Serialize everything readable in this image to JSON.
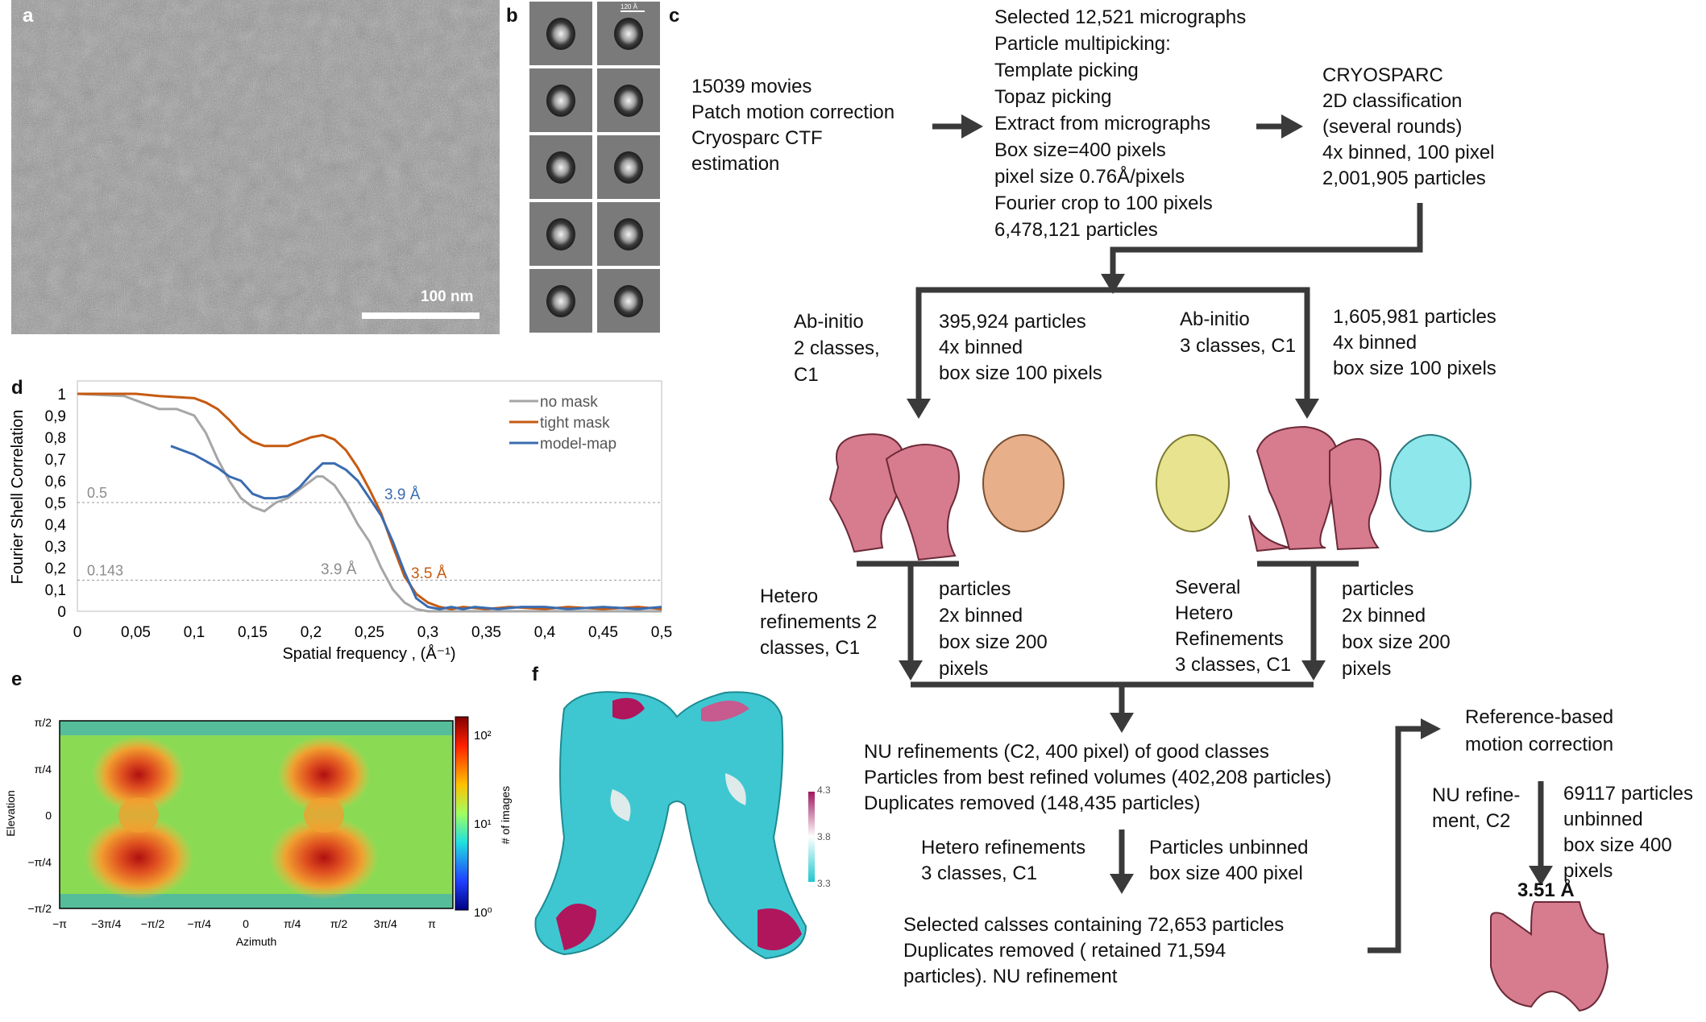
{
  "panels": {
    "a": {
      "label": "a",
      "scalebar": "100 nm"
    },
    "b": {
      "label": "b",
      "scalebar": "120 Å"
    },
    "c": {
      "label": "c"
    },
    "d": {
      "label": "d"
    },
    "e": {
      "label": "e"
    },
    "f": {
      "label": "f"
    }
  },
  "flow": {
    "movies": [
      "15039 movies",
      "Patch motion correction",
      "Cryosparc CTF",
      "estimation"
    ],
    "picking": [
      "Selected 12,521 micrographs",
      "Particle multipicking:",
      "Template picking",
      "Topaz picking",
      "Extract from micrographs",
      "Box size=400 pixels",
      "pixel size 0.76Å/pixels",
      "Fourier crop to 100 pixels",
      "6,478,121 particles"
    ],
    "cryosparc": [
      "CRYOSPARC",
      "2D classification",
      "(several rounds)",
      "4x binned, 100 pixel",
      "2,001,905 particles"
    ],
    "abinitio_left": [
      "Ab-initio",
      "2 classes,",
      "C1"
    ],
    "particles_left": [
      "395,924 particles",
      "4x binned",
      "box size 100 pixels"
    ],
    "abinitio_right": [
      "Ab-initio",
      "3 classes, C1"
    ],
    "particles_right": [
      "1,605,981 particles",
      "4x binned",
      "box size 100 pixels"
    ],
    "hetero_left": [
      "Hetero",
      "refinements 2",
      "classes, C1"
    ],
    "binned_left": [
      "particles",
      "2x binned",
      "box size 200",
      "pixels"
    ],
    "hetero_right": [
      "Several",
      "Hetero",
      "Refinements",
      "3 classes, C1"
    ],
    "binned_right": [
      "particles",
      "2x binned",
      "box size 200",
      "pixels"
    ],
    "nu_refine": [
      "NU refinements (C2, 400 pixel) of good classes",
      "Particles from best refined volumes (402,208 particles)",
      "Duplicates removed (148,435 particles)"
    ],
    "hetero3": [
      "Hetero refinements",
      "3 classes, C1"
    ],
    "unbinned400": [
      "Particles unbinned",
      "box size 400 pixel"
    ],
    "selected": [
      "Selected calsses containing 72,653 particles",
      "Duplicates removed ( retained 71,594",
      "particles). NU refinement"
    ],
    "refmotion": [
      "Reference-based",
      "motion correction"
    ],
    "nu_c2": [
      "NU refine-",
      "ment, C2"
    ],
    "p69117": [
      "69117 particles",
      "unbinned",
      "box size 400",
      "pixels"
    ],
    "resolution_final": "3.51 Å"
  },
  "chart_data": [
    {
      "type": "line",
      "panel": "d",
      "ylabel": "Fourier Shell Correlation",
      "xlabel": "Spatial frequency , (Å⁻¹)",
      "xlim": [
        0,
        0.5
      ],
      "ylim": [
        0,
        1
      ],
      "x_ticks": [
        "0",
        "0,05",
        "0,1",
        "0,15",
        "0,2",
        "0,25",
        "0,3",
        "0,35",
        "0,4",
        "0,45",
        "0,5"
      ],
      "y_ticks": [
        "0",
        "0,1",
        "0,2",
        "0,3",
        "0,4",
        "0,5",
        "0,6",
        "0,7",
        "0,8",
        "0,9",
        "1"
      ],
      "legend_position": "top-right",
      "thresholds": [
        {
          "value": 0.5,
          "label": "0.5"
        },
        {
          "value": 0.143,
          "label": "0.143"
        }
      ],
      "annotations": [
        {
          "text": "3.9 Å",
          "series": "no mask",
          "color": "#8c8c8c"
        },
        {
          "text": "3.9 Å",
          "series": "model-map",
          "color": "#3a6cb0"
        },
        {
          "text": "3.5 Å",
          "series": "tight mask",
          "color": "#c55a11"
        }
      ],
      "series": [
        {
          "name": "no mask",
          "color": "#a6a6a6",
          "x": [
            0,
            0.04,
            0.055,
            0.07,
            0.085,
            0.1,
            0.11,
            0.12,
            0.13,
            0.14,
            0.15,
            0.16,
            0.17,
            0.18,
            0.19,
            0.2,
            0.205,
            0.21,
            0.22,
            0.23,
            0.24,
            0.25,
            0.26,
            0.27,
            0.28,
            0.29,
            0.3,
            0.32,
            0.35,
            0.4,
            0.45,
            0.5
          ],
          "y": [
            1,
            0.99,
            0.96,
            0.93,
            0.93,
            0.9,
            0.82,
            0.7,
            0.6,
            0.52,
            0.48,
            0.46,
            0.5,
            0.52,
            0.56,
            0.6,
            0.62,
            0.62,
            0.58,
            0.5,
            0.4,
            0.32,
            0.2,
            0.1,
            0.04,
            0.01,
            0,
            0,
            0,
            0,
            0,
            0
          ]
        },
        {
          "name": "tight mask",
          "color": "#c55a11",
          "x": [
            0,
            0.05,
            0.07,
            0.1,
            0.11,
            0.12,
            0.13,
            0.14,
            0.15,
            0.16,
            0.17,
            0.18,
            0.19,
            0.2,
            0.21,
            0.22,
            0.23,
            0.24,
            0.25,
            0.26,
            0.27,
            0.28,
            0.29,
            0.3,
            0.31,
            0.32,
            0.33,
            0.35,
            0.37,
            0.4,
            0.42,
            0.45,
            0.48,
            0.5
          ],
          "y": [
            1,
            1,
            0.99,
            0.98,
            0.96,
            0.93,
            0.88,
            0.82,
            0.78,
            0.76,
            0.76,
            0.76,
            0.78,
            0.8,
            0.81,
            0.79,
            0.74,
            0.66,
            0.56,
            0.45,
            0.3,
            0.16,
            0.08,
            0.04,
            0.02,
            0.01,
            0.02,
            0.01,
            0.02,
            0.01,
            0.02,
            0.01,
            0.02,
            0.01
          ]
        },
        {
          "name": "model-map",
          "color": "#3a6cb0",
          "x": [
            0.08,
            0.1,
            0.12,
            0.13,
            0.14,
            0.15,
            0.16,
            0.17,
            0.18,
            0.19,
            0.2,
            0.21,
            0.22,
            0.23,
            0.24,
            0.25,
            0.26,
            0.27,
            0.28,
            0.29,
            0.3,
            0.31,
            0.32,
            0.33,
            0.34,
            0.36,
            0.38,
            0.4,
            0.42,
            0.45,
            0.48,
            0.5
          ],
          "y": [
            0.76,
            0.72,
            0.66,
            0.62,
            0.6,
            0.54,
            0.52,
            0.52,
            0.53,
            0.57,
            0.63,
            0.68,
            0.68,
            0.65,
            0.6,
            0.52,
            0.44,
            0.32,
            0.18,
            0.06,
            0.02,
            0.01,
            0.02,
            0.01,
            0.02,
            0.01,
            0.02,
            0.02,
            0.01,
            0.02,
            0.01,
            0.02
          ]
        }
      ]
    },
    {
      "type": "heatmap",
      "panel": "e",
      "xlabel": "Azimuth",
      "ylabel": "Elevation",
      "x_ticks": [
        "−π",
        "−3π/4",
        "−π/2",
        "−π/4",
        "0",
        "π/4",
        "π/2",
        "3π/4",
        "π"
      ],
      "y_ticks": [
        "π/2",
        "π/4",
        "0",
        "−π/4",
        "−π/2"
      ],
      "colorbar_label": "# of images",
      "colorbar_ticks": [
        "10²",
        "10¹",
        "10⁰"
      ]
    },
    {
      "type": "heatmap",
      "panel": "f",
      "colorbar_ticks": [
        "4.3",
        "3.8",
        "3.3"
      ]
    }
  ]
}
